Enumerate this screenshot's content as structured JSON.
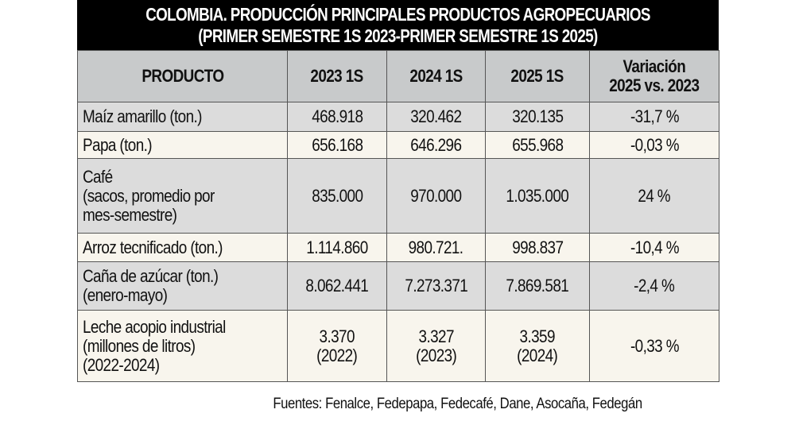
{
  "title": {
    "line1": "COLOMBIA. PRODUCCIÓN PRINCIPALES PRODUCTOS AGROPECUARIOS",
    "line2": "(PRIMER SEMESTRE 1S 2023-PRIMER SEMESTRE 1S 2025)"
  },
  "table": {
    "headers": [
      "PRODUCTO",
      "2023 1S",
      "2024 1S",
      "2025 1S",
      "Variación\n2025 vs. 2023"
    ],
    "rows": [
      {
        "producto": "Maíz amarillo (ton.)",
        "y2023": "468.918",
        "y2024": "320.462",
        "y2025": "320.135",
        "variacion": "-31,7 %"
      },
      {
        "producto": "Papa (ton.)",
        "y2023": "656.168",
        "y2024": "646.296",
        "y2025": "655.968",
        "variacion": "-0,03 %"
      },
      {
        "producto": "Café\n(sacos, promedio por\nmes-semestre)",
        "y2023": "835.000",
        "y2024": "970.000",
        "y2025": "1.035.000",
        "variacion": "24 %"
      },
      {
        "producto": "Arroz tecnificado (ton.)",
        "y2023": "1.114.860",
        "y2024": "980.721.",
        "y2025": "998.837",
        "variacion": "-10,4 %"
      },
      {
        "producto": "Caña de azúcar (ton.)\n(enero-mayo)",
        "y2023": "8.062.441",
        "y2024": "7.273.371",
        "y2025": "7.869.581",
        "variacion": "-2,4 %"
      },
      {
        "producto": "Leche acopio industrial\n(millones de litros)\n(2022-2024)",
        "y2023": "3.370\n(2022)",
        "y2024": "3.327\n(2023)",
        "y2025": "3.359\n(2024)",
        "variacion": "-0,33 %"
      }
    ]
  },
  "source": "Fuentes: Fenalce, Fedepapa, Fedecafé, Dane, Asocaña, Fedegán",
  "colors": {
    "title_bg": "#000000",
    "header_bg": "#c8cacb",
    "row_grey": "#dcdcdc",
    "row_cream": "#f8f5ed"
  }
}
